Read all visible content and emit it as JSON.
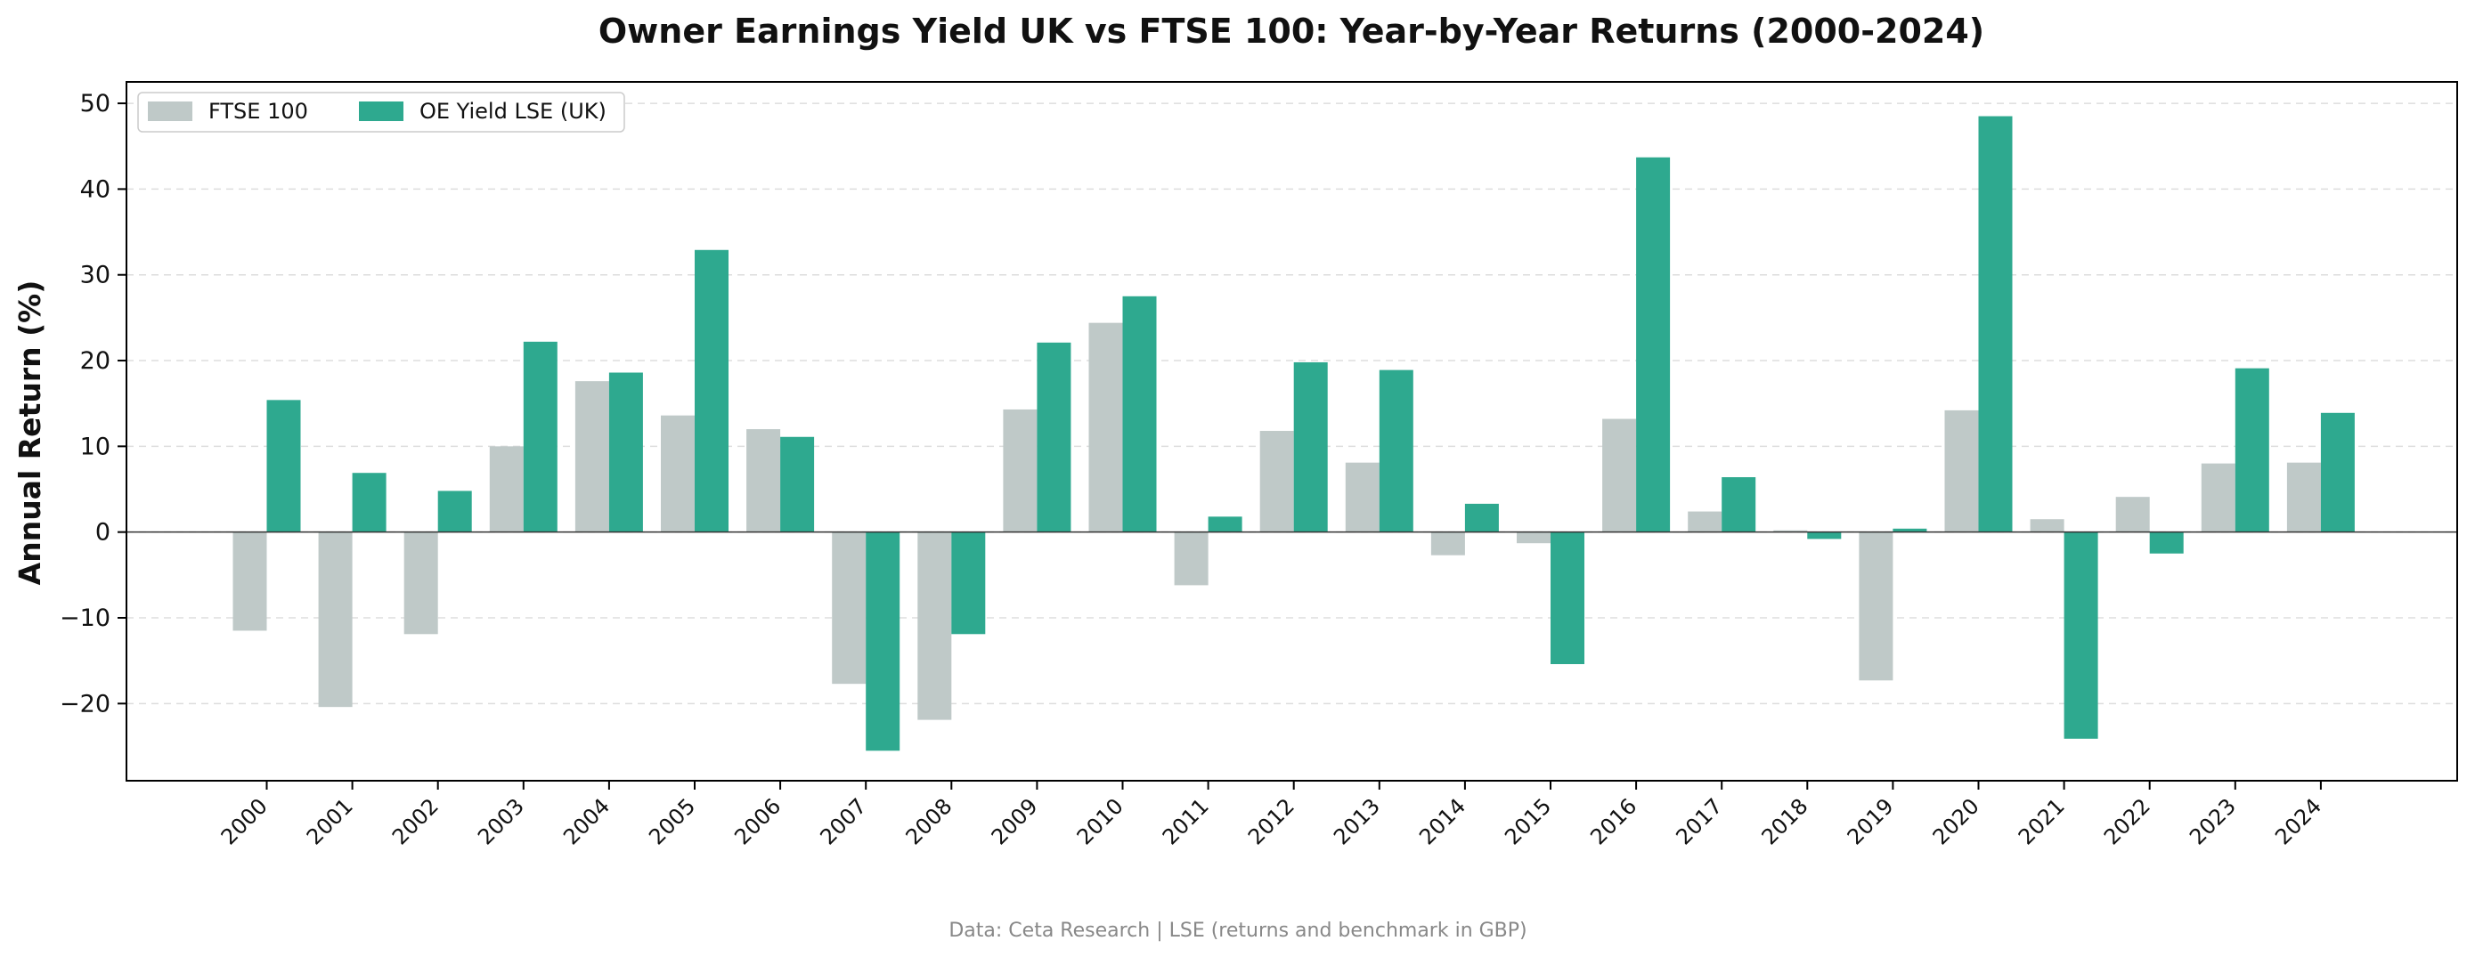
{
  "chart_data": {
    "type": "bar",
    "title": "Owner Earnings Yield UK vs FTSE 100: Year-by-Year Returns (2000-2024)",
    "xlabel": "",
    "ylabel": "Annual Return (%)",
    "ylim": [
      -29,
      52.5
    ],
    "yticks": [
      -20,
      -10,
      0,
      10,
      20,
      30,
      40,
      50
    ],
    "grid": true,
    "legend_position": "top-left",
    "categories": [
      "2000",
      "2001",
      "2002",
      "2003",
      "2004",
      "2005",
      "2006",
      "2007",
      "2008",
      "2009",
      "2010",
      "2011",
      "2012",
      "2013",
      "2014",
      "2015",
      "2016",
      "2017",
      "2018",
      "2019",
      "2020",
      "2021",
      "2022",
      "2023",
      "2024"
    ],
    "series": [
      {
        "name": "FTSE 100",
        "color": "#bfc9c8",
        "values": [
          -11.5,
          -20.4,
          -11.9,
          10.0,
          17.6,
          13.6,
          12.0,
          -17.7,
          -21.9,
          14.3,
          24.4,
          -6.2,
          11.8,
          8.1,
          -2.7,
          -1.3,
          13.2,
          2.4,
          0.2,
          -17.3,
          14.2,
          1.5,
          4.1,
          8.0,
          8.1
        ]
      },
      {
        "name": "OE Yield LSE (UK)",
        "color": "#2ea98f",
        "values": [
          15.4,
          6.9,
          4.8,
          22.2,
          18.6,
          32.9,
          11.1,
          -25.5,
          -11.9,
          22.1,
          27.5,
          1.8,
          19.8,
          18.9,
          3.3,
          -15.4,
          43.7,
          6.4,
          -0.8,
          0.4,
          48.5,
          -24.1,
          -2.5,
          19.1,
          13.9
        ]
      }
    ],
    "footnote": "Data: Ceta Research | LSE (returns and benchmark in GBP)"
  }
}
